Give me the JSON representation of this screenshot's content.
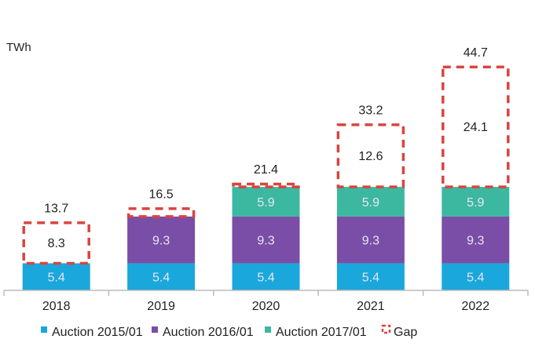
{
  "chart_data": {
    "type": "bar",
    "stacked": true,
    "unit_label": "TWh",
    "categories": [
      "2018",
      "2019",
      "2020",
      "2021",
      "2022"
    ],
    "series": [
      {
        "name": "Auction 2015/01",
        "color": "#1aa7dc",
        "values": [
          5.4,
          5.4,
          5.4,
          5.4,
          5.4
        ],
        "labels": [
          "5.4",
          "5.4",
          "5.4",
          "5.4",
          "5.4"
        ]
      },
      {
        "name": "Auction 2016/01",
        "color": "#7a4ea6",
        "values": [
          0,
          9.3,
          9.3,
          9.3,
          9.3
        ],
        "labels": [
          "",
          "9.3",
          "9.3",
          "9.3",
          "9.3"
        ]
      },
      {
        "name": "Auction 2017/01",
        "color": "#3db8a0",
        "values": [
          0,
          0,
          5.9,
          5.9,
          5.9
        ],
        "labels": [
          "",
          "",
          "5.9",
          "5.9",
          "5.9"
        ]
      },
      {
        "name": "Gap",
        "color": "#d9443f",
        "style": "dashed-outline",
        "values": [
          8.3,
          1.8,
          0.8,
          12.6,
          24.1
        ],
        "labels": [
          "8.3",
          "",
          "",
          "12.6",
          "24.1"
        ]
      }
    ],
    "totals": [
      "13.7",
      "16.5",
      "21.4",
      "33.2",
      "44.7"
    ],
    "ylim": [
      0,
      47
    ],
    "grid": false,
    "legend": "bottom"
  }
}
